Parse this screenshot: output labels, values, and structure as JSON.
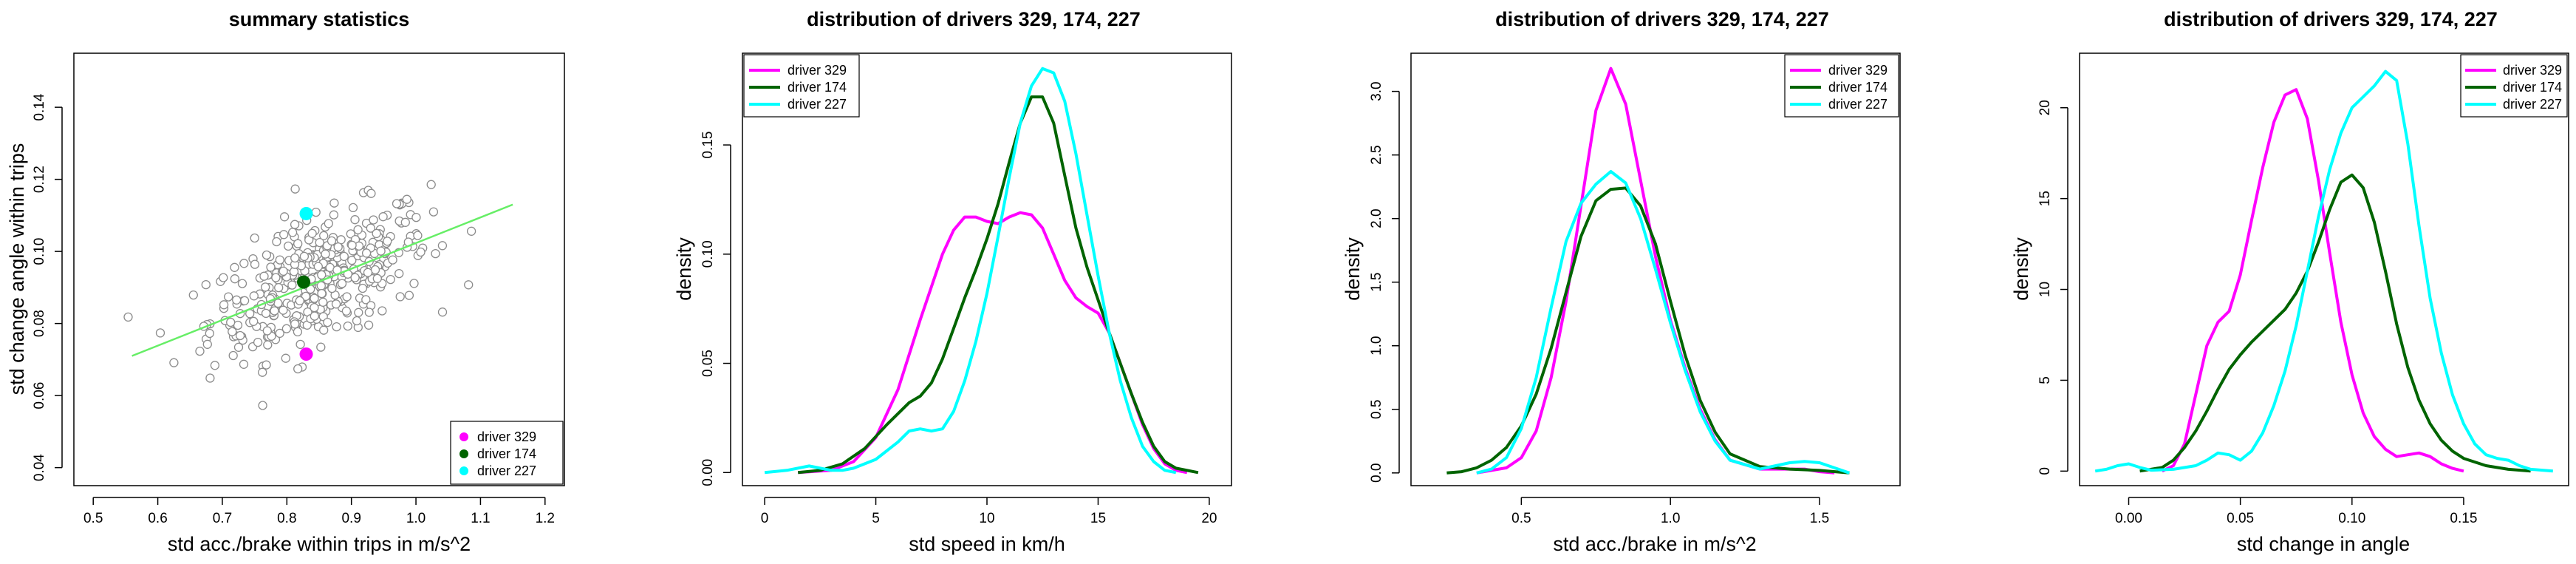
{
  "chart_data": [
    {
      "type": "scatter",
      "title": "summary statistics",
      "xlabel": "std acc./brake within trips in m/s^2",
      "ylabel": "std change angle within trips",
      "xlim": [
        0.47,
        1.23
      ],
      "ylim": [
        0.035,
        0.155
      ],
      "xticks": [
        "0.5",
        "0.6",
        "0.7",
        "0.8",
        "0.9",
        "1.0",
        "1.1",
        "1.2"
      ],
      "yticks": [
        "0.04",
        "0.06",
        "0.08",
        "0.10",
        "0.12",
        "0.14"
      ],
      "cloud": {
        "n": 420,
        "center": [
          0.85,
          0.092
        ],
        "color": "#8c8c8c",
        "fill": "#ffffff"
      },
      "fit_line": {
        "x": [
          0.56,
          1.15
        ],
        "y": [
          0.071,
          0.113
        ],
        "color": "#66ee66"
      },
      "highlights": [
        {
          "name": "driver 329",
          "x": 0.83,
          "y": 0.0715,
          "color": "#ff00ff"
        },
        {
          "name": "driver 174",
          "x": 0.826,
          "y": 0.0915,
          "color": "#006400"
        },
        {
          "name": "driver 227",
          "x": 0.83,
          "y": 0.1105,
          "color": "#00ffff"
        }
      ],
      "legend": {
        "position": "bottom-right",
        "entries": [
          "driver 329",
          "driver 174",
          "driver 227"
        ]
      }
    },
    {
      "type": "line",
      "title": "distribution of drivers 329, 174, 227",
      "xlabel": "std speed in km/h",
      "ylabel": "density",
      "xlim": [
        -1,
        21
      ],
      "ylim": [
        -0.006,
        0.192
      ],
      "xticks": [
        "0",
        "5",
        "10",
        "15",
        "20"
      ],
      "yticks": [
        "0.00",
        "0.05",
        "0.10",
        "0.15"
      ],
      "series": [
        {
          "name": "driver 329",
          "color": "#ff00ff",
          "x": [
            1.5,
            3,
            4,
            5,
            6,
            7,
            8,
            8.5,
            9,
            9.5,
            10,
            10.5,
            11,
            11.5,
            12,
            12.5,
            13,
            13.5,
            14,
            14.5,
            15,
            15.5,
            16,
            16.5,
            17,
            17.5,
            18,
            18.5,
            19
          ],
          "y": [
            0,
            0.001,
            0.005,
            0.016,
            0.038,
            0.07,
            0.1,
            0.111,
            0.117,
            0.117,
            0.115,
            0.114,
            0.117,
            0.119,
            0.118,
            0.112,
            0.1,
            0.088,
            0.08,
            0.076,
            0.073,
            0.064,
            0.05,
            0.036,
            0.022,
            0.011,
            0.004,
            0.001,
            0
          ]
        },
        {
          "name": "driver 174",
          "color": "#006400",
          "x": [
            1.5,
            2.5,
            3.5,
            4.5,
            5.5,
            6.5,
            7,
            7.5,
            8,
            8.5,
            9,
            9.5,
            10,
            10.5,
            11,
            11.5,
            12,
            12.5,
            13,
            13.5,
            14,
            14.5,
            15,
            15.5,
            16,
            16.5,
            17,
            17.5,
            18,
            18.5,
            19.5
          ],
          "y": [
            0,
            0.001,
            0.004,
            0.011,
            0.022,
            0.032,
            0.035,
            0.041,
            0.052,
            0.066,
            0.08,
            0.093,
            0.107,
            0.123,
            0.142,
            0.16,
            0.172,
            0.172,
            0.16,
            0.136,
            0.112,
            0.094,
            0.079,
            0.064,
            0.05,
            0.036,
            0.023,
            0.012,
            0.005,
            0.002,
            0
          ]
        },
        {
          "name": "driver 227",
          "color": "#00ffff",
          "x": [
            0,
            1,
            2,
            3,
            3.5,
            4,
            5,
            6,
            6.5,
            7,
            7.5,
            8,
            8.5,
            9,
            9.5,
            10,
            10.5,
            11,
            11.5,
            12,
            12.5,
            13,
            13.5,
            14,
            14.5,
            15,
            15.5,
            16,
            16.5,
            17,
            17.5,
            18,
            18.5
          ],
          "y": [
            0,
            0.001,
            0.003,
            0.001,
            0.001,
            0.002,
            0.006,
            0.014,
            0.019,
            0.02,
            0.019,
            0.02,
            0.028,
            0.042,
            0.06,
            0.082,
            0.108,
            0.135,
            0.16,
            0.177,
            0.185,
            0.183,
            0.17,
            0.146,
            0.118,
            0.09,
            0.064,
            0.042,
            0.025,
            0.012,
            0.005,
            0.001,
            0
          ]
        }
      ],
      "legend": {
        "position": "top-left",
        "entries": [
          "driver 329",
          "driver 174",
          "driver 227"
        ]
      }
    },
    {
      "type": "line",
      "title": "distribution of drivers 329, 174, 227",
      "xlabel": "std acc./brake in m/s^2",
      "ylabel": "density",
      "xlim": [
        0.13,
        1.77
      ],
      "ylim": [
        -0.1,
        3.3
      ],
      "xticks": [
        "0.5",
        "1.0",
        "1.5"
      ],
      "yticks": [
        "0.0",
        "0.5",
        "1.0",
        "1.5",
        "2.0",
        "2.5",
        "3.0"
      ],
      "series": [
        {
          "name": "driver 329",
          "color": "#ff00ff",
          "x": [
            0.35,
            0.45,
            0.5,
            0.55,
            0.6,
            0.65,
            0.7,
            0.75,
            0.8,
            0.85,
            0.9,
            0.95,
            1.0,
            1.05,
            1.1,
            1.15,
            1.2,
            1.3,
            1.4,
            1.45,
            1.5,
            1.55
          ],
          "y": [
            0,
            0.04,
            0.12,
            0.33,
            0.75,
            1.35,
            2.1,
            2.85,
            3.18,
            2.9,
            2.3,
            1.7,
            1.2,
            0.82,
            0.5,
            0.26,
            0.1,
            0.03,
            0.03,
            0.03,
            0.01,
            0
          ]
        },
        {
          "name": "driver 174",
          "color": "#006400",
          "x": [
            0.25,
            0.3,
            0.35,
            0.4,
            0.45,
            0.5,
            0.55,
            0.6,
            0.65,
            0.7,
            0.75,
            0.8,
            0.85,
            0.9,
            0.95,
            1.0,
            1.05,
            1.1,
            1.15,
            1.2,
            1.3,
            1.4,
            1.5,
            1.6
          ],
          "y": [
            0,
            0.01,
            0.04,
            0.1,
            0.2,
            0.37,
            0.62,
            0.98,
            1.42,
            1.86,
            2.14,
            2.23,
            2.24,
            2.1,
            1.8,
            1.35,
            0.92,
            0.57,
            0.32,
            0.15,
            0.05,
            0.03,
            0.02,
            0
          ]
        },
        {
          "name": "driver 227",
          "color": "#00ffff",
          "x": [
            0.35,
            0.4,
            0.45,
            0.5,
            0.55,
            0.6,
            0.65,
            0.7,
            0.75,
            0.8,
            0.85,
            0.9,
            0.95,
            1.0,
            1.05,
            1.1,
            1.15,
            1.2,
            1.3,
            1.4,
            1.45,
            1.5,
            1.55,
            1.6
          ],
          "y": [
            0,
            0.03,
            0.12,
            0.35,
            0.75,
            1.3,
            1.82,
            2.12,
            2.27,
            2.37,
            2.28,
            2.0,
            1.6,
            1.18,
            0.8,
            0.48,
            0.25,
            0.1,
            0.03,
            0.08,
            0.09,
            0.08,
            0.04,
            0
          ]
        }
      ],
      "legend": {
        "position": "top-right",
        "entries": [
          "driver 329",
          "driver 174",
          "driver 227"
        ]
      }
    },
    {
      "type": "line",
      "title": "distribution of drivers 329, 174, 227",
      "xlabel": "std change in angle",
      "ylabel": "density",
      "xlim": [
        -0.022,
        0.197
      ],
      "ylim": [
        -0.8,
        23
      ],
      "xticks": [
        "0.00",
        "0.05",
        "0.10",
        "0.15"
      ],
      "yticks": [
        "0",
        "5",
        "10",
        "15",
        "20"
      ],
      "series": [
        {
          "name": "driver 329",
          "color": "#ff00ff",
          "x": [
            0.015,
            0.02,
            0.025,
            0.03,
            0.035,
            0.04,
            0.045,
            0.05,
            0.055,
            0.06,
            0.065,
            0.07,
            0.075,
            0.08,
            0.085,
            0.09,
            0.095,
            0.1,
            0.105,
            0.11,
            0.115,
            0.12,
            0.125,
            0.13,
            0.135,
            0.14,
            0.145,
            0.15
          ],
          "y": [
            0,
            0.3,
            1.5,
            4.2,
            6.9,
            8.2,
            8.8,
            10.8,
            13.8,
            16.7,
            19.2,
            20.7,
            21,
            19.4,
            16,
            12,
            8.2,
            5.3,
            3.2,
            1.9,
            1.2,
            0.8,
            0.9,
            1,
            0.8,
            0.4,
            0.15,
            0
          ]
        },
        {
          "name": "driver 174",
          "color": "#006400",
          "x": [
            0.005,
            0.015,
            0.02,
            0.025,
            0.03,
            0.035,
            0.04,
            0.045,
            0.05,
            0.055,
            0.06,
            0.065,
            0.07,
            0.075,
            0.08,
            0.085,
            0.09,
            0.095,
            0.1,
            0.105,
            0.11,
            0.115,
            0.12,
            0.125,
            0.13,
            0.135,
            0.14,
            0.145,
            0.15,
            0.16,
            0.17,
            0.18
          ],
          "y": [
            0,
            0.2,
            0.6,
            1.3,
            2.2,
            3.3,
            4.5,
            5.6,
            6.4,
            7.1,
            7.7,
            8.3,
            8.9,
            9.8,
            11,
            12.6,
            14.4,
            15.9,
            16.3,
            15.6,
            13.7,
            11,
            8.1,
            5.7,
            3.9,
            2.6,
            1.7,
            1.1,
            0.7,
            0.3,
            0.1,
            0
          ]
        },
        {
          "name": "driver 227",
          "color": "#00ffff",
          "x": [
            -0.015,
            -0.01,
            -0.005,
            0.0,
            0.005,
            0.01,
            0.02,
            0.03,
            0.035,
            0.04,
            0.045,
            0.05,
            0.055,
            0.06,
            0.065,
            0.07,
            0.075,
            0.08,
            0.085,
            0.09,
            0.095,
            0.1,
            0.105,
            0.11,
            0.115,
            0.12,
            0.125,
            0.13,
            0.135,
            0.14,
            0.145,
            0.15,
            0.155,
            0.16,
            0.165,
            0.17,
            0.175,
            0.18,
            0.19
          ],
          "y": [
            0,
            0.1,
            0.3,
            0.4,
            0.2,
            0.05,
            0.1,
            0.3,
            0.6,
            1,
            0.9,
            0.6,
            1.1,
            2.1,
            3.6,
            5.5,
            8,
            11,
            14,
            16.6,
            18.6,
            20,
            20.6,
            21.2,
            22,
            21.5,
            18,
            13.5,
            9.5,
            6.5,
            4.2,
            2.6,
            1.5,
            0.9,
            0.7,
            0.6,
            0.3,
            0.1,
            0
          ]
        }
      ],
      "legend": {
        "position": "top-right",
        "entries": [
          "driver 329",
          "driver 174",
          "driver 227"
        ]
      }
    }
  ]
}
